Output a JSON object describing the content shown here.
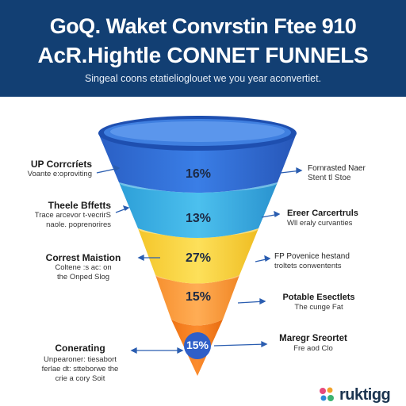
{
  "header": {
    "title_line1": "GoQ. Waket Convrstin Ftee 910",
    "title_line2": "AcR.Hightle CONNET FUNNELS",
    "subtitle": "Singeal coons etatielioglouet we you year aconvertiet."
  },
  "funnel": {
    "stages": [
      {
        "pct": "16%",
        "color": "#2f6fd6"
      },
      {
        "pct": "13%",
        "color": "#35aee3"
      },
      {
        "pct": "27%",
        "color": "#f7d33a"
      },
      {
        "pct": "15%",
        "color": "#fb9a3c"
      },
      {
        "pct": "15%",
        "color": "#f47c1c"
      }
    ]
  },
  "left_labels": [
    {
      "title": "UP Corrcríets",
      "desc": "Voante e:oproviting"
    },
    {
      "title": "Theele Bffetts",
      "desc": "Trace arcevor t-vecrirS\nnaole. poprenorires"
    },
    {
      "title": "Correst Maistion",
      "desc": "Coltene :s ac: on\nthe Onped Slog"
    },
    {
      "title": "Conerating",
      "desc": "Unpearoner: tiesabort\nferlae dt: stteborwe the\ncrie a cory Soit"
    }
  ],
  "right_labels": [
    {
      "title": "Fornrasted Naer",
      "desc": "Stent tl Stoe"
    },
    {
      "title": "Ereer Carcertruls",
      "desc": "Wll eraly curvanties"
    },
    {
      "title": "FP Povenice hestand",
      "desc": "troltets conwentents"
    },
    {
      "title": "Potable Esectlets",
      "desc": "The cunge Fat"
    },
    {
      "title": "Maregr Sreortet",
      "desc": "Fre aod Clo"
    }
  ],
  "logo": {
    "text": "ruktigg"
  },
  "colors": {
    "header": "#123f73",
    "arrow": "#2a5db0"
  }
}
